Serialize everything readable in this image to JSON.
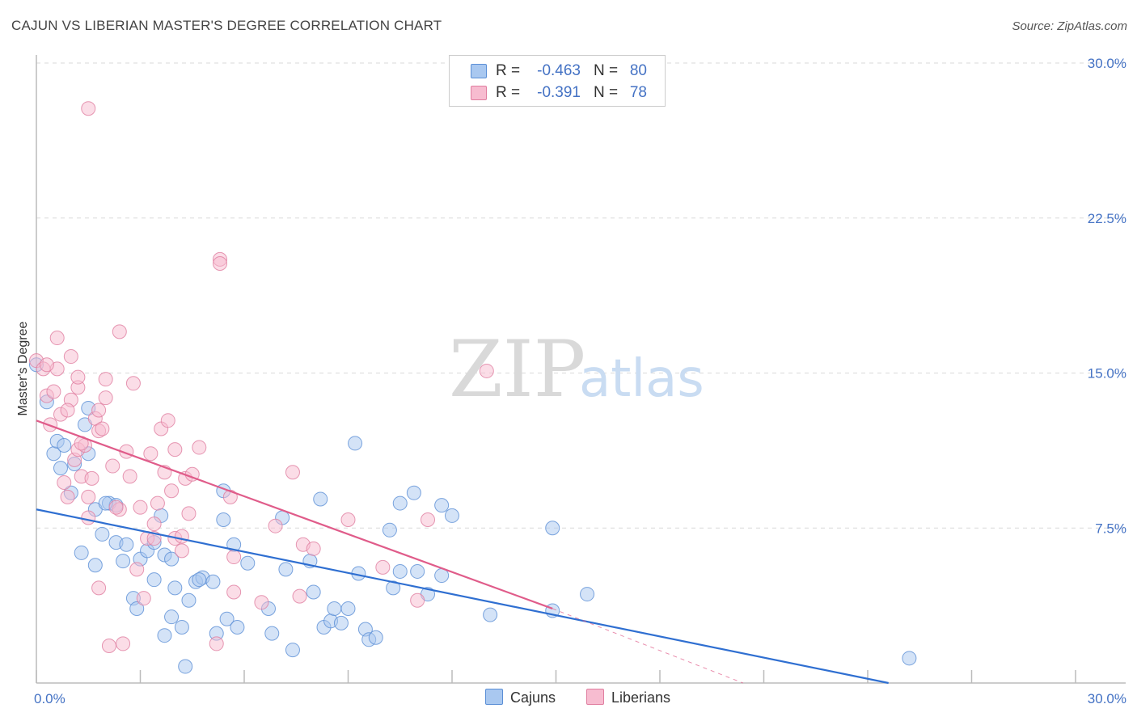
{
  "title": "CAJUN VS LIBERIAN MASTER'S DEGREE CORRELATION CHART",
  "source": "Source: ZipAtlas.com",
  "watermark": {
    "zip": "ZIP",
    "atlas": "atlas"
  },
  "colors": {
    "cajun_fill": "#a9c8f0",
    "cajun_stroke": "#5b8fd6",
    "cajun_line": "#2f6fd1",
    "liberian_fill": "#f7bcd0",
    "liberian_stroke": "#e07ea0",
    "liberian_line": "#e05c8a",
    "value_text": "#4472c4",
    "grid": "#d9d9d9"
  },
  "stats": [
    {
      "series": "Cajuns",
      "r_label": "R =",
      "r_value": "-0.463",
      "n_label": "N =",
      "n_value": "80"
    },
    {
      "series": "Liberians",
      "r_label": "R =",
      "r_value": "-0.391",
      "n_label": "N =",
      "n_value": "78"
    }
  ],
  "legend": [
    {
      "label": "Cajuns"
    },
    {
      "label": "Liberians"
    }
  ],
  "chart_data": {
    "type": "scatter",
    "title": "CAJUN VS LIBERIAN MASTER'S DEGREE CORRELATION CHART",
    "xlabel": "",
    "ylabel": "Master's Degree",
    "xlim": [
      0,
      30
    ],
    "ylim": [
      0,
      30
    ],
    "x_tick_labels": [
      "0.0%",
      "30.0%"
    ],
    "y_ticks": [
      7.5,
      15.0,
      22.5,
      30.0
    ],
    "y_tick_labels": [
      "7.5%",
      "15.0%",
      "22.5%",
      "30.0%"
    ],
    "grid": "horizontal dashed",
    "legend_placement": "bottom-center",
    "series": [
      {
        "name": "Cajuns",
        "points": [
          [
            0.0,
            15.4
          ],
          [
            0.3,
            13.6
          ],
          [
            0.5,
            11.1
          ],
          [
            0.6,
            11.7
          ],
          [
            0.7,
            10.4
          ],
          [
            0.8,
            11.5
          ],
          [
            1.0,
            9.2
          ],
          [
            1.1,
            10.6
          ],
          [
            1.4,
            12.5
          ],
          [
            1.5,
            13.3
          ],
          [
            1.5,
            11.1
          ],
          [
            1.7,
            8.4
          ],
          [
            2.1,
            8.7
          ],
          [
            2.3,
            8.6
          ],
          [
            1.7,
            5.7
          ],
          [
            1.3,
            6.3
          ],
          [
            1.9,
            7.2
          ],
          [
            2.3,
            6.8
          ],
          [
            2.6,
            6.7
          ],
          [
            2.5,
            5.9
          ],
          [
            3.0,
            6.0
          ],
          [
            3.2,
            6.4
          ],
          [
            3.4,
            6.8
          ],
          [
            3.4,
            5.0
          ],
          [
            3.6,
            8.1
          ],
          [
            3.7,
            6.2
          ],
          [
            3.9,
            6.0
          ],
          [
            4.0,
            4.6
          ],
          [
            2.8,
            4.1
          ],
          [
            2.9,
            3.6
          ],
          [
            3.7,
            2.3
          ],
          [
            3.9,
            3.2
          ],
          [
            4.2,
            2.7
          ],
          [
            4.4,
            4.0
          ],
          [
            4.6,
            4.9
          ],
          [
            4.8,
            5.1
          ],
          [
            4.7,
            5.0
          ],
          [
            5.1,
            4.9
          ],
          [
            5.2,
            2.4
          ],
          [
            5.4,
            9.3
          ],
          [
            5.4,
            7.9
          ],
          [
            5.7,
            6.7
          ],
          [
            5.5,
            3.1
          ],
          [
            5.8,
            2.7
          ],
          [
            6.1,
            5.8
          ],
          [
            6.7,
            3.6
          ],
          [
            6.8,
            2.4
          ],
          [
            7.1,
            8.0
          ],
          [
            7.2,
            5.5
          ],
          [
            7.4,
            1.6
          ],
          [
            7.9,
            5.9
          ],
          [
            8.0,
            4.4
          ],
          [
            8.2,
            8.9
          ],
          [
            8.3,
            2.7
          ],
          [
            8.5,
            3.0
          ],
          [
            8.6,
            3.6
          ],
          [
            8.8,
            2.9
          ],
          [
            9.0,
            3.6
          ],
          [
            9.2,
            11.6
          ],
          [
            9.3,
            5.3
          ],
          [
            9.5,
            2.6
          ],
          [
            9.6,
            2.1
          ],
          [
            9.8,
            2.2
          ],
          [
            10.2,
            7.4
          ],
          [
            10.3,
            4.6
          ],
          [
            10.5,
            5.4
          ],
          [
            10.5,
            8.7
          ],
          [
            10.9,
            9.2
          ],
          [
            11.0,
            5.4
          ],
          [
            11.3,
            4.3
          ],
          [
            11.7,
            8.6
          ],
          [
            11.7,
            5.2
          ],
          [
            12.0,
            8.1
          ],
          [
            13.1,
            3.3
          ],
          [
            14.9,
            3.5
          ],
          [
            14.9,
            7.5
          ],
          [
            15.9,
            4.3
          ],
          [
            25.2,
            1.2
          ],
          [
            4.3,
            0.8
          ],
          [
            2.0,
            8.7
          ]
        ]
      },
      {
        "name": "Liberians",
        "points": [
          [
            0.0,
            15.6
          ],
          [
            0.2,
            15.2
          ],
          [
            0.3,
            13.9
          ],
          [
            0.4,
            12.5
          ],
          [
            0.5,
            14.1
          ],
          [
            0.6,
            16.7
          ],
          [
            0.6,
            15.2
          ],
          [
            0.7,
            13.0
          ],
          [
            0.8,
            9.7
          ],
          [
            0.9,
            9.0
          ],
          [
            1.0,
            15.8
          ],
          [
            1.0,
            13.7
          ],
          [
            1.1,
            10.8
          ],
          [
            1.2,
            11.3
          ],
          [
            1.2,
            14.3
          ],
          [
            1.2,
            14.8
          ],
          [
            1.3,
            10.0
          ],
          [
            1.4,
            11.5
          ],
          [
            1.5,
            9.0
          ],
          [
            1.5,
            8.0
          ],
          [
            1.7,
            12.8
          ],
          [
            1.8,
            13.2
          ],
          [
            1.8,
            12.2
          ],
          [
            1.8,
            4.6
          ],
          [
            1.9,
            12.3
          ],
          [
            2.0,
            14.7
          ],
          [
            2.0,
            13.8
          ],
          [
            2.1,
            1.8
          ],
          [
            2.2,
            10.5
          ],
          [
            2.4,
            17.0
          ],
          [
            2.4,
            8.4
          ],
          [
            2.5,
            1.9
          ],
          [
            2.6,
            11.2
          ],
          [
            2.8,
            14.5
          ],
          [
            2.9,
            5.5
          ],
          [
            3.0,
            8.5
          ],
          [
            3.1,
            4.1
          ],
          [
            3.2,
            7.0
          ],
          [
            3.3,
            11.1
          ],
          [
            3.4,
            7.7
          ],
          [
            3.4,
            7.0
          ],
          [
            3.6,
            12.3
          ],
          [
            3.7,
            10.2
          ],
          [
            3.8,
            12.7
          ],
          [
            3.9,
            9.3
          ],
          [
            4.0,
            11.3
          ],
          [
            4.0,
            7.0
          ],
          [
            4.2,
            6.4
          ],
          [
            4.2,
            7.1
          ],
          [
            4.3,
            9.9
          ],
          [
            4.5,
            10.1
          ],
          [
            4.7,
            11.4
          ],
          [
            1.5,
            27.8
          ],
          [
            5.3,
            20.5
          ],
          [
            5.3,
            20.3
          ],
          [
            5.6,
            9.0
          ],
          [
            5.7,
            6.1
          ],
          [
            5.7,
            4.4
          ],
          [
            5.2,
            1.9
          ],
          [
            6.5,
            3.9
          ],
          [
            6.9,
            7.6
          ],
          [
            7.4,
            10.2
          ],
          [
            7.6,
            4.2
          ],
          [
            7.7,
            6.7
          ],
          [
            8.0,
            6.5
          ],
          [
            9.0,
            7.9
          ],
          [
            10.0,
            5.6
          ],
          [
            11.0,
            4.0
          ],
          [
            11.3,
            7.9
          ],
          [
            13.0,
            15.1
          ],
          [
            2.3,
            8.5
          ],
          [
            0.3,
            15.4
          ],
          [
            0.9,
            13.2
          ],
          [
            1.6,
            9.9
          ],
          [
            2.7,
            10.0
          ],
          [
            3.5,
            8.7
          ],
          [
            4.4,
            8.2
          ],
          [
            1.3,
            11.6
          ]
        ]
      }
    ],
    "trendlines": [
      {
        "series": "Cajuns",
        "from": [
          0,
          8.4
        ],
        "to": [
          24.6,
          0
        ],
        "style": "solid"
      },
      {
        "series": "Liberians",
        "from": [
          0,
          12.7
        ],
        "to": [
          14.9,
          3.6
        ],
        "style": "solid"
      },
      {
        "series": "Liberians",
        "from": [
          14.9,
          3.6
        ],
        "to": [
          20.4,
          0
        ],
        "style": "dashed"
      }
    ]
  }
}
